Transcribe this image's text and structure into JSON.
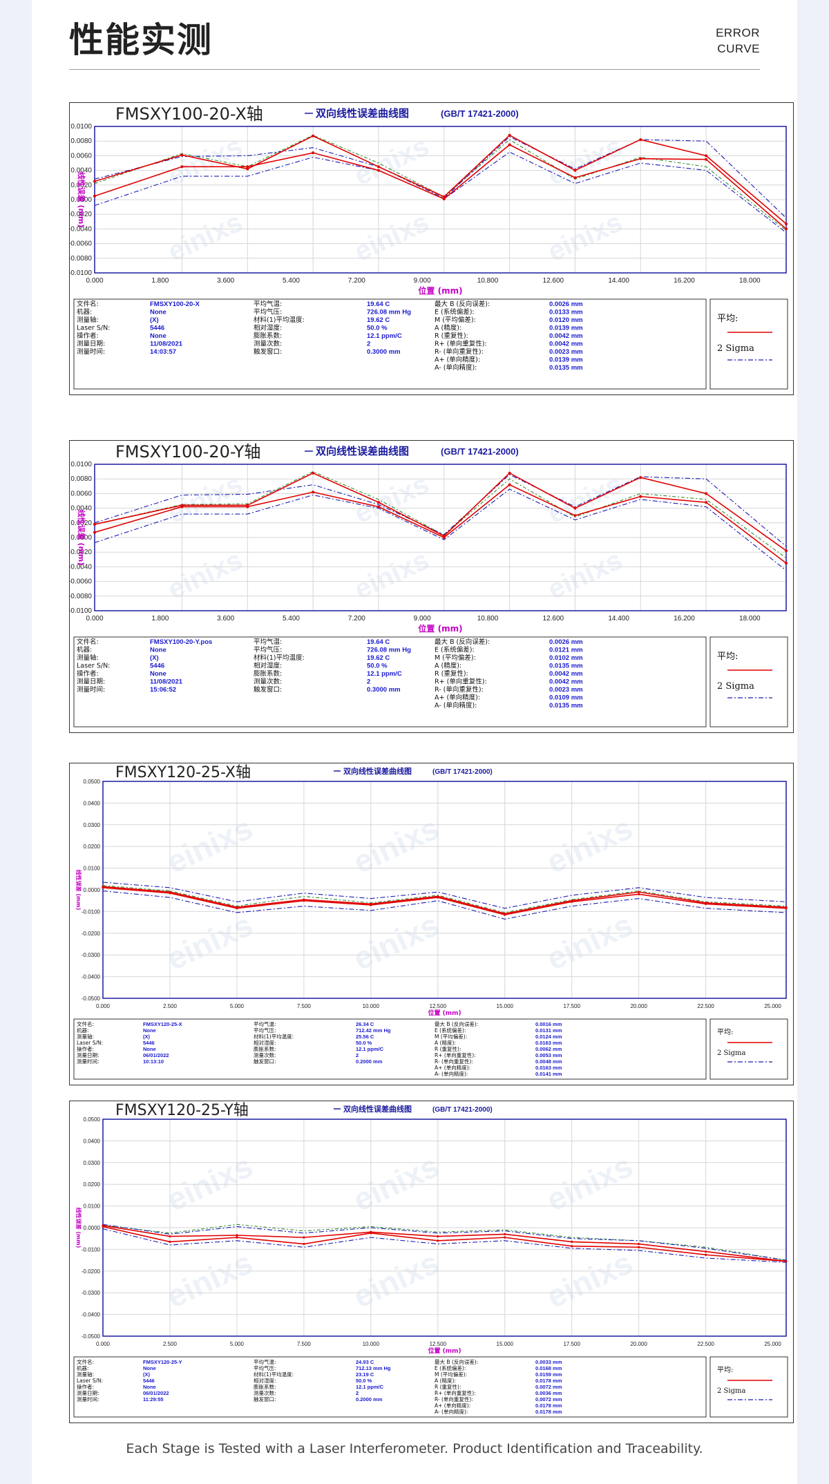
{
  "header": {
    "title": "性能实测",
    "subtitle": [
      "ERROR",
      "CURVE"
    ]
  },
  "footer": {
    "text": "Each Stage is Tested with a Laser Interferometer. Product Identification and Traceability."
  },
  "legend": {
    "avg": "平均:",
    "sigma": "2 Sigma"
  },
  "watermark": "einixs",
  "info_labels": {
    "col1": [
      "文件名:",
      "机器:",
      "测量轴:",
      "Laser S/N:",
      "操作者:",
      "测量日期:",
      "测量时间:"
    ],
    "col2": [
      "平均气温:",
      "平均气压:",
      "材料(1)平均温度:",
      "相对湿度:",
      "膨胀系数:",
      "测量次数:",
      "触发窗口:"
    ],
    "col3": [
      "最大 B (反向误差):",
      "E (系统偏差):",
      "M (平均偏差):",
      "A (精度):",
      "R (重复性):",
      "R+ (单向重复性):",
      "R- (单向重复性):",
      "A+ (单向精度):",
      "A- (单向精度):"
    ]
  },
  "chart_data": [
    {
      "type": "line",
      "title": "FMSXY100-20-X轴",
      "subtitle": "双向线性误差曲线图",
      "standard": "(GB/T 17421-2000)",
      "xlabel": "位置 (mm)",
      "ylabel": "线性误差 (mm)",
      "xlim": [
        0,
        19
      ],
      "ylim": [
        -0.01,
        0.01
      ],
      "xticks": [
        "0.000",
        "1.800",
        "3.600",
        "5.400",
        "7.200",
        "9.000",
        "10.800",
        "12.600",
        "14.400",
        "16.200",
        "18.000"
      ],
      "yticks": [
        "0.0100",
        "0.0080",
        "0.0060",
        "0.0040",
        "0.0020",
        "0.0000",
        "-0.0020",
        "-0.0040",
        "-0.0060",
        "-0.0080",
        "-0.0100"
      ],
      "x": [
        0,
        2.4,
        4.2,
        6,
        7.8,
        9.6,
        11.4,
        13.2,
        15,
        16.8,
        19
      ],
      "series": [
        {
          "role": "avg",
          "values": [
            0.0005,
            0.0045,
            0.0045,
            0.0064,
            0.004,
            0.0001,
            0.0075,
            0.003,
            0.0056,
            0.0055,
            -0.004
          ]
        },
        {
          "role": "avg",
          "values": [
            0.0025,
            0.0061,
            0.0042,
            0.0087,
            0.0045,
            0.0004,
            0.0088,
            0.004,
            0.0082,
            0.006,
            -0.0033
          ]
        },
        {
          "role": "sigma",
          "values": [
            -0.0008,
            0.0032,
            0.0032,
            0.0058,
            0.004,
            0.0001,
            0.0065,
            0.0022,
            0.005,
            0.004,
            -0.0045
          ]
        },
        {
          "role": "sigma",
          "values": [
            0.0028,
            0.0059,
            0.006,
            0.0071,
            0.0045,
            0.0002,
            0.0086,
            0.0042,
            0.0082,
            0.008,
            -0.0025
          ]
        },
        {
          "role": "green",
          "values": [
            0.0022,
            0.0063,
            0.0045,
            0.0088,
            0.005,
            0.0004,
            0.0082,
            0.0028,
            0.0058,
            0.0045,
            -0.0042
          ]
        }
      ],
      "info": {
        "col1": [
          "FMSXY100-20-X",
          "None",
          "(X)",
          "5446",
          "None",
          "11/08/2021",
          "14:03:57"
        ],
        "col2": [
          "19.64 C",
          "726.08 mm Hg",
          "19.62 C",
          "50.0 %",
          "12.1 ppm/C",
          "2",
          "0.3000 mm"
        ],
        "col3": [
          "0.0026 mm",
          "0.0133 mm",
          "0.0120 mm",
          "0.0139 mm",
          "0.0042 mm",
          "0.0042 mm",
          "0.0023 mm",
          "0.0139 mm",
          "0.0135 mm"
        ]
      }
    },
    {
      "type": "line",
      "title": "FMSXY100-20-Y轴",
      "subtitle": "双向线性误差曲线图",
      "standard": "(GB/T 17421-2000)",
      "xlabel": "位置 (mm)",
      "ylabel": "线性误差 (mm)",
      "xlim": [
        0,
        19
      ],
      "ylim": [
        -0.01,
        0.01
      ],
      "xticks": [
        "0.000",
        "1.800",
        "3.600",
        "5.400",
        "7.200",
        "9.000",
        "10.800",
        "12.600",
        "14.400",
        "16.200",
        "18.000"
      ],
      "yticks": [
        "0.0100",
        "0.0080",
        "0.0060",
        "0.0040",
        "0.0020",
        "0.0000",
        "-0.0020",
        "-0.0040",
        "-0.0060",
        "-0.0080",
        "-0.0100"
      ],
      "x": [
        0,
        2.4,
        4.2,
        6,
        7.8,
        9.6,
        11.4,
        13.2,
        15,
        16.8,
        19
      ],
      "series": [
        {
          "role": "avg",
          "values": [
            0.0007,
            0.0042,
            0.0042,
            0.0062,
            0.0042,
            0,
            0.0072,
            0.003,
            0.0056,
            0.0048,
            -0.0035
          ]
        },
        {
          "role": "avg",
          "values": [
            0.0018,
            0.0044,
            0.0044,
            0.0088,
            0.0048,
            0.0002,
            0.0088,
            0.004,
            0.0082,
            0.006,
            -0.0018
          ]
        },
        {
          "role": "sigma",
          "values": [
            -0.0007,
            0.0032,
            0.0032,
            0.0058,
            0.004,
            -0.0003,
            0.0066,
            0.0024,
            0.0052,
            0.0042,
            -0.0045
          ]
        },
        {
          "role": "sigma",
          "values": [
            0.002,
            0.0058,
            0.0059,
            0.0072,
            0.0045,
            0.0004,
            0.0086,
            0.0042,
            0.0083,
            0.008,
            -0.0012
          ]
        },
        {
          "role": "green",
          "values": [
            0.0018,
            0.0045,
            0.0046,
            0.009,
            0.0052,
            0.0003,
            0.008,
            0.0028,
            0.006,
            0.0052,
            -0.0028
          ]
        }
      ],
      "info": {
        "col1": [
          "FMSXY100-20-Y.pos",
          "None",
          "(X)",
          "5446",
          "None",
          "11/08/2021",
          "15:06:52"
        ],
        "col2": [
          "19.64 C",
          "726.08 mm Hg",
          "19.62 C",
          "50.0 %",
          "12.1 ppm/C",
          "2",
          "0.3000 mm"
        ],
        "col3": [
          "0.0026 mm",
          "0.0121 mm",
          "0.0102 mm",
          "0.0135 mm",
          "0.0042 mm",
          "0.0042 mm",
          "0.0023 mm",
          "0.0109 mm",
          "0.0135 mm"
        ]
      }
    },
    {
      "type": "line",
      "title": "FMSXY120-25-X轴",
      "subtitle": "双向线性误差曲线图",
      "standard": "(GB/T 17421-2000)",
      "xlabel": "位置 (mm)",
      "ylabel": "线性误差 (mm)",
      "xlim": [
        0,
        25.5
      ],
      "ylim": [
        -0.05,
        0.05
      ],
      "xticks": [
        "0.000",
        "2.500",
        "5.000",
        "7.500",
        "10.000",
        "12.500",
        "15.000",
        "17.500",
        "20.000",
        "22.500",
        "25.000"
      ],
      "yticks": [
        "0.0500",
        "0.0400",
        "0.0300",
        "0.0200",
        "0.0100",
        "0.0000",
        "-0.0100",
        "-0.0200",
        "-0.0300",
        "-0.0400",
        "-0.0500"
      ],
      "x": [
        0,
        2.5,
        5,
        7.5,
        10,
        12.5,
        15,
        17.5,
        20,
        22.5,
        25.5
      ],
      "series": [
        {
          "role": "avg",
          "values": [
            0.0015,
            -0.001,
            -0.008,
            -0.0045,
            -0.0065,
            -0.003,
            -0.011,
            -0.005,
            -0.001,
            -0.006,
            -0.008
          ]
        },
        {
          "role": "avg",
          "values": [
            0.001,
            -0.0015,
            -0.0085,
            -0.005,
            -0.007,
            -0.0035,
            -0.0115,
            -0.0055,
            -0.002,
            -0.0065,
            -0.0085
          ]
        },
        {
          "role": "sigma",
          "values": [
            -0.0005,
            -0.0035,
            -0.0105,
            -0.0075,
            -0.0095,
            -0.005,
            -0.0135,
            -0.0075,
            -0.004,
            -0.0085,
            -0.0105
          ]
        },
        {
          "role": "sigma",
          "values": [
            0.0035,
            0.001,
            -0.0055,
            -0.0015,
            -0.004,
            -0.001,
            -0.0085,
            -0.0025,
            0.001,
            -0.0035,
            -0.0055
          ]
        },
        {
          "role": "green",
          "values": [
            0.002,
            -0.0005,
            -0.0075,
            -0.003,
            -0.006,
            -0.0025,
            -0.0105,
            -0.0045,
            -0.0005,
            -0.0055,
            -0.0075
          ]
        }
      ],
      "info": {
        "col1": [
          "FMSXY120-25-X",
          "None",
          "(X)",
          "5446",
          "None",
          "06/01/2022",
          "10:13:10"
        ],
        "col2": [
          "26.34 C",
          "712.42 mm Hg",
          "25.56 C",
          "50.0 %",
          "12.1 ppm/C",
          "2",
          "0.2000 mm"
        ],
        "col3": [
          "0.0016 mm",
          "0.0131 mm",
          "0.0124 mm",
          "0.0163 mm",
          "0.0062 mm",
          "0.0053 mm",
          "0.0048 mm",
          "0.0163 mm",
          "0.0141 mm"
        ]
      }
    },
    {
      "type": "line",
      "title": "FMSXY120-25-Y轴",
      "subtitle": "双向线性误差曲线图",
      "standard": "(GB/T 17421-2000)",
      "xlabel": "位置 (mm)",
      "ylabel": "线性误差 (mm)",
      "xlim": [
        0,
        25.5
      ],
      "ylim": [
        -0.05,
        0.05
      ],
      "xticks": [
        "0.000",
        "2.500",
        "5.000",
        "7.500",
        "10.000",
        "12.500",
        "15.000",
        "17.500",
        "20.000",
        "22.500",
        "25.000"
      ],
      "yticks": [
        "0.0500",
        "0.0400",
        "0.0300",
        "0.0200",
        "0.0100",
        "0.0000",
        "-0.0100",
        "-0.0200",
        "-0.0300",
        "-0.0400",
        "-0.0500"
      ],
      "x": [
        0,
        2.5,
        5,
        7.5,
        10,
        12.5,
        15,
        17.5,
        20,
        22.5,
        25.5
      ],
      "series": [
        {
          "role": "avg",
          "values": [
            0.001,
            -0.004,
            -0.0035,
            -0.0045,
            -0.002,
            -0.004,
            -0.003,
            -0.0065,
            -0.0075,
            -0.011,
            -0.0155
          ]
        },
        {
          "role": "avg",
          "values": [
            0.0005,
            -0.0065,
            -0.0045,
            -0.0075,
            -0.0025,
            -0.006,
            -0.0045,
            -0.0085,
            -0.009,
            -0.0125,
            -0.0155
          ]
        },
        {
          "role": "sigma",
          "values": [
            -0.0005,
            -0.008,
            -0.006,
            -0.009,
            -0.0045,
            -0.0075,
            -0.006,
            -0.0095,
            -0.0105,
            -0.014,
            -0.016
          ]
        },
        {
          "role": "sigma",
          "values": [
            0.0015,
            -0.003,
            0.0005,
            -0.0025,
            0,
            -0.0025,
            -0.0015,
            -0.005,
            -0.006,
            -0.0095,
            -0.015
          ]
        },
        {
          "role": "green",
          "values": [
            0.0012,
            -0.0025,
            0.0015,
            -0.0015,
            0.0005,
            -0.002,
            -0.001,
            -0.0045,
            -0.006,
            -0.009,
            -0.015
          ]
        }
      ],
      "info": {
        "col1": [
          "FMSXY120-25-Y",
          "None",
          "(X)",
          "5446",
          "None",
          "06/01/2022",
          "11:29:55"
        ],
        "col2": [
          "24.93 C",
          "712.13 mm Hg",
          "23.19 C",
          "50.0 %",
          "12.1 ppm/C",
          "2",
          "0.2000 mm"
        ],
        "col3": [
          "0.0033 mm",
          "0.0168 mm",
          "0.0159 mm",
          "0.0178 mm",
          "0.0072 mm",
          "0.0036 mm",
          "0.0072 mm",
          "0.0178 mm",
          "0.0178 mm"
        ]
      }
    }
  ]
}
